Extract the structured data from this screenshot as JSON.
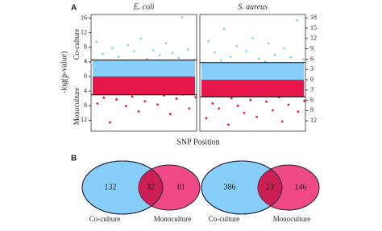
{
  "labels": {
    "panel_a": "A",
    "panel_b": "B",
    "ylabel": "-log(p-value)",
    "upper_label": "Co-culture",
    "lower_label": "Monoculture",
    "xlabel": "SNP Position"
  },
  "chart_data": [
    {
      "type": "scatter",
      "title": "E. coli",
      "xlim": [
        0,
        100
      ],
      "ylim": [
        -15,
        17
      ],
      "yticks": [
        16,
        12,
        8,
        4,
        0,
        {
          "value": -4,
          "label": "4"
        },
        {
          "value": -8,
          "label": "8"
        },
        {
          "value": -12,
          "label": "12"
        }
      ],
      "thresholds": [
        4.5,
        -5
      ],
      "series": [
        {
          "name": "Co-culture",
          "color": "#87cefa",
          "x": [
            2,
            5,
            8,
            11,
            14,
            17,
            20,
            23,
            26,
            29,
            32,
            35,
            38,
            41,
            44,
            47,
            50,
            53,
            56,
            59,
            62,
            65,
            68,
            71,
            74,
            77,
            80,
            83,
            86,
            89,
            92,
            95,
            98
          ],
          "values": [
            3.1,
            9.5,
            2.4,
            6.2,
            1.8,
            3.7,
            7.8,
            2.9,
            5.4,
            1.2,
            4.1,
            8.6,
            2.2,
            6.9,
            3.3,
            10.4,
            1.6,
            4.8,
            2.7,
            7.1,
            3.9,
            5.8,
            1.4,
            9.1,
            2.5,
            6.4,
            3.6,
            5.1,
            16.2,
            2.1,
            7.4,
            3.2,
            4.6
          ]
        },
        {
          "name": "Monoculture",
          "color": "#e8174b",
          "x": [
            3,
            6,
            9,
            12,
            15,
            18,
            21,
            24,
            27,
            30,
            33,
            36,
            39,
            42,
            45,
            48,
            51,
            54,
            57,
            60,
            63,
            66,
            69,
            72,
            75,
            78,
            81,
            84,
            87,
            90,
            93,
            96,
            99
          ],
          "values": [
            -2.3,
            -7.4,
            -1.6,
            -5.8,
            -3.1,
            -12.6,
            -2.7,
            -6.3,
            -1.9,
            -4.2,
            -8.1,
            -2.5,
            -5.5,
            -3.4,
            -9.6,
            -1.7,
            -6.8,
            -2.9,
            -4.6,
            -1.3,
            -7.7,
            -3.8,
            -5.2,
            -2.1,
            -10.3,
            -3.5,
            -6.1,
            -1.8,
            -4.9,
            -2.6,
            -8.8,
            -3.3,
            -5.7
          ]
        }
      ]
    },
    {
      "type": "scatter",
      "title": "S. aureus",
      "xlim": [
        0,
        100
      ],
      "ylim": [
        -15,
        19
      ],
      "yticks": [
        18,
        15,
        12,
        9,
        6,
        3,
        0,
        {
          "value": -3,
          "label": "3"
        },
        {
          "value": -6,
          "label": "6"
        },
        {
          "value": -9,
          "label": "9"
        },
        {
          "value": -12,
          "label": "12"
        }
      ],
      "thresholds": [
        5,
        -5
      ],
      "series": [
        {
          "name": "Co-culture",
          "color": "#87cefa",
          "x": [
            2,
            5,
            8,
            11,
            14,
            17,
            20,
            23,
            26,
            29,
            32,
            35,
            38,
            41,
            44,
            47,
            50,
            53,
            56,
            59,
            62,
            65,
            68,
            71,
            74,
            77,
            80,
            83,
            86,
            89,
            92,
            95,
            98
          ],
          "values": [
            4.2,
            2.1,
            11.3,
            3.5,
            7.9,
            1.9,
            5.6,
            14.8,
            2.7,
            6.7,
            3.1,
            9.8,
            1.5,
            4.4,
            8.3,
            2.3,
            12.1,
            3.9,
            6.1,
            1.7,
            5.3,
            10.6,
            2.8,
            7.2,
            4.7,
            1.3,
            9.2,
            3.4,
            6.5,
            2.4,
            17.3,
            4.1,
            5.9
          ]
        },
        {
          "name": "Monoculture",
          "color": "#e8174b",
          "x": [
            3,
            6,
            9,
            12,
            15,
            18,
            21,
            24,
            27,
            30,
            33,
            36,
            39,
            42,
            45,
            48,
            51,
            54,
            57,
            60,
            63,
            66,
            69,
            72,
            75,
            78,
            81,
            84,
            87,
            90,
            93,
            96,
            99
          ],
          "values": [
            -3.6,
            -11.2,
            -2.2,
            -6.9,
            -1.5,
            -8.4,
            -4.3,
            -2.8,
            -13.1,
            -5.4,
            -1.9,
            -7.6,
            -3.2,
            -9.7,
            -2.4,
            -5.9,
            -1.6,
            -10.8,
            -4.1,
            -2.9,
            -6.4,
            -1.4,
            -8.9,
            -3.7,
            -5.1,
            -12.2,
            -2.5,
            -7.3,
            -4.6,
            -1.8,
            -9.3,
            -3.1,
            -6.2
          ]
        }
      ]
    },
    {
      "type": "venn",
      "sets": [
        {
          "name": "Co-culture",
          "color": "#87cefa"
        },
        {
          "name": "Monoculture",
          "color": "#f04a86"
        }
      ],
      "overlap_color": "#c91f55",
      "values": [
        132,
        32,
        81
      ]
    },
    {
      "type": "venn",
      "sets": [
        {
          "name": "Co-culture",
          "color": "#87cefa"
        },
        {
          "name": "Monoculture",
          "color": "#f04a86"
        }
      ],
      "overlap_color": "#c91f55",
      "values": [
        386,
        23,
        146
      ]
    }
  ]
}
